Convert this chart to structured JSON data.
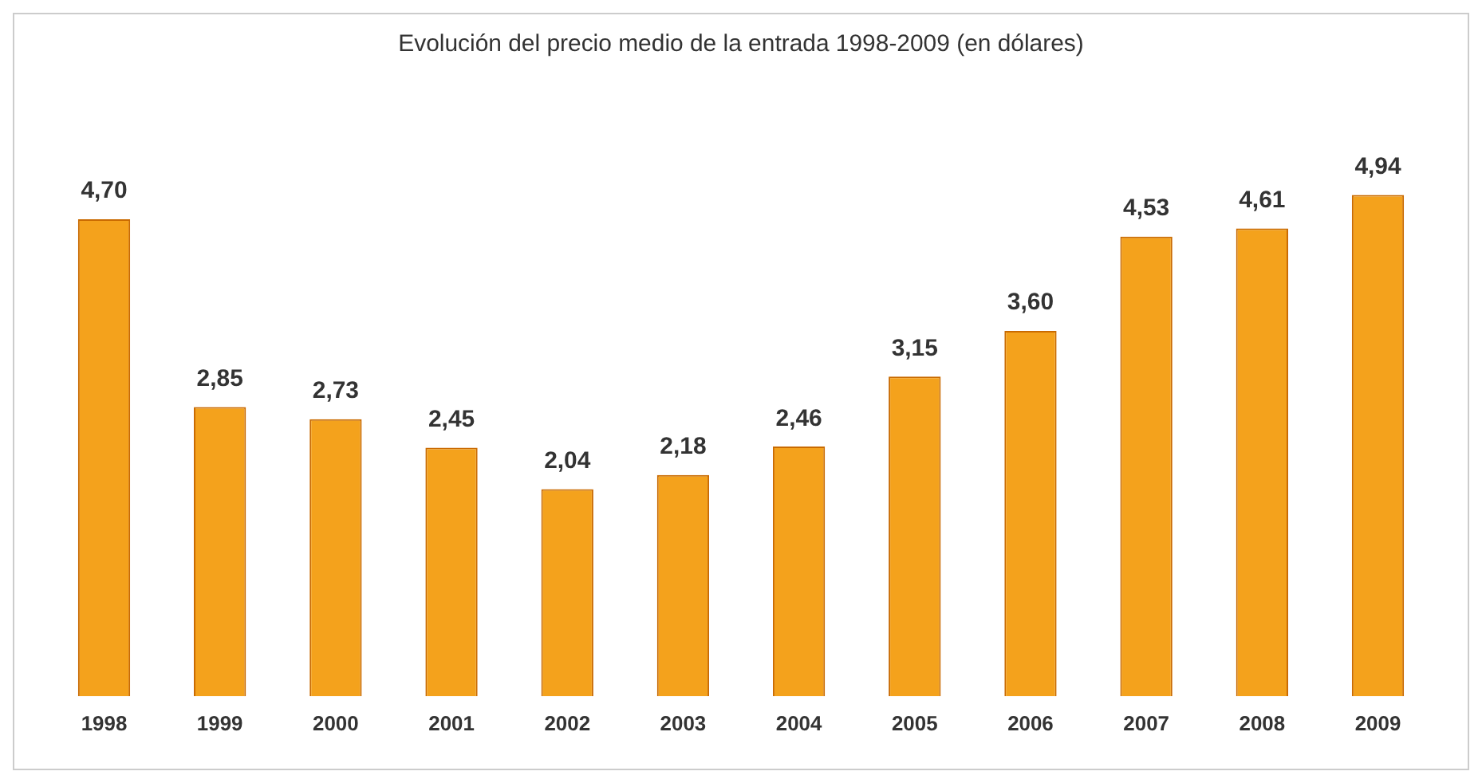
{
  "chart_data": {
    "type": "bar",
    "title": "Evolución del precio medio de la entrada 1998-2009 (en dólares)",
    "categories": [
      "1998",
      "1999",
      "2000",
      "2001",
      "2002",
      "2003",
      "2004",
      "2005",
      "2006",
      "2007",
      "2008",
      "2009"
    ],
    "values": [
      4.7,
      2.85,
      2.73,
      2.45,
      2.04,
      2.18,
      2.46,
      3.15,
      3.6,
      4.53,
      4.61,
      4.94
    ],
    "value_labels": [
      "4,70",
      "2,85",
      "2,73",
      "2,45",
      "2,04",
      "2,18",
      "2,46",
      "3,15",
      "3,60",
      "4,53",
      "4,61",
      "4,94"
    ],
    "color": "#f4a21c",
    "grid": false,
    "legend": false
  }
}
